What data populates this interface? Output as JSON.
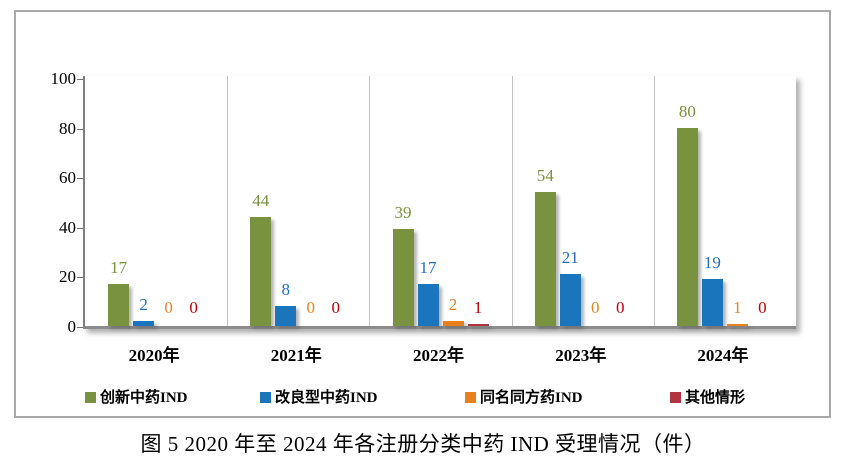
{
  "figure": {
    "caption": "图 5  2020 年至 2024 年各注册分类中药 IND 受理情况（件）"
  },
  "chart_data": {
    "type": "bar",
    "title": "",
    "xlabel": "",
    "ylabel": "",
    "categories": [
      "2020年",
      "2021年",
      "2022年",
      "2023年",
      "2024年"
    ],
    "series": [
      {
        "name": "创新中药IND",
        "values": [
          17,
          44,
          39,
          54,
          80
        ],
        "color": "#78923F",
        "label_color": "#77933C"
      },
      {
        "name": "改良型中药IND",
        "values": [
          2,
          8,
          17,
          21,
          19
        ],
        "color": "#1B75BC",
        "label_color": "#1F6FC5"
      },
      {
        "name": "同名同方药IND",
        "values": [
          0,
          0,
          2,
          0,
          1
        ],
        "color": "#E8801E",
        "label_color": "#E8821D"
      },
      {
        "name": "其他情形",
        "values": [
          0,
          0,
          1,
          0,
          0
        ],
        "color": "#B03540",
        "label_color": "#C00000"
      }
    ],
    "ylim": [
      0,
      100
    ],
    "yticks": [
      0,
      20,
      40,
      60,
      80,
      100
    ],
    "grid": "vertical-category-separators",
    "legend_position": "bottom",
    "frame_border_color": "#A8A8A8",
    "axis_color": "#7F7F7F"
  }
}
